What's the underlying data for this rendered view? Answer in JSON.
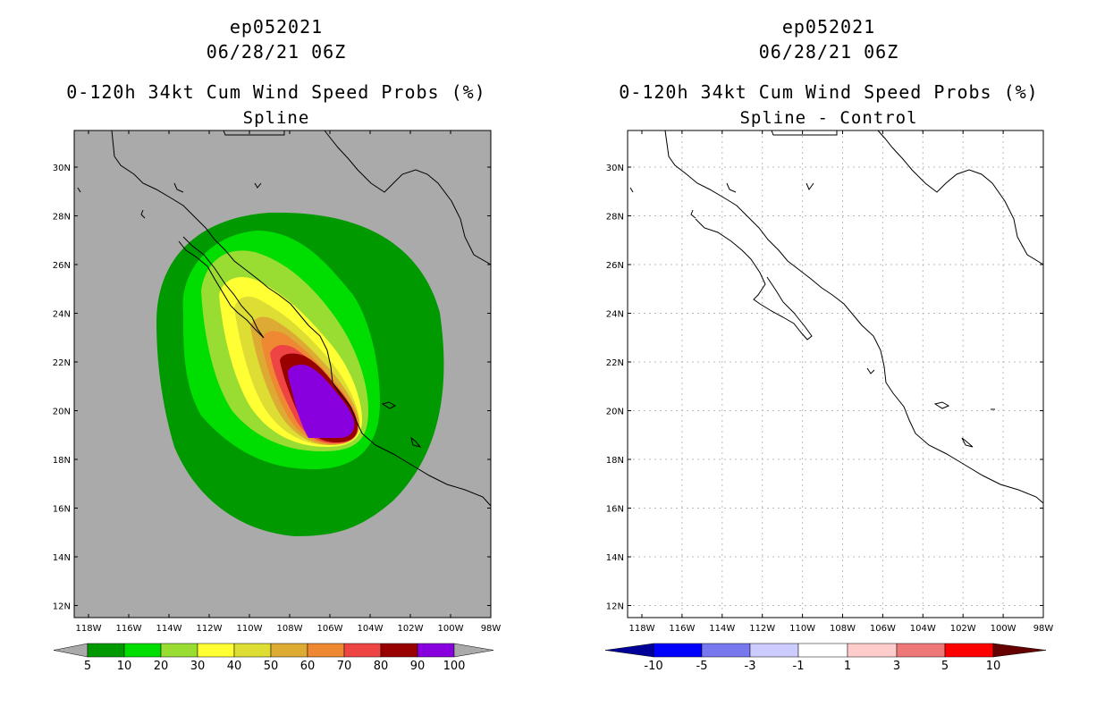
{
  "left_panel": {
    "storm_id": "ep052021",
    "datetime": "06/28/21 06Z",
    "product_title": "0-120h 34kt Cum Wind Speed Probs (%)",
    "subtitle": "Spline",
    "lat_labels": [
      "30N",
      "28N",
      "26N",
      "24N",
      "22N",
      "20N",
      "18N",
      "16N",
      "14N",
      "12N"
    ],
    "lon_labels": [
      "118W",
      "116W",
      "114W",
      "112W",
      "110W",
      "108W",
      "106W",
      "104W",
      "102W",
      "100W",
      "98W"
    ],
    "colorbar": {
      "colors": [
        "#009900",
        "#00dd00",
        "#99dd33",
        "#ffff33",
        "#dddd33",
        "#ddaa33",
        "#ee8833",
        "#ee4444",
        "#990000",
        "#8800dd"
      ],
      "end_color": "#aaaaaa",
      "labels": [
        "5",
        "10",
        "20",
        "30",
        "40",
        "50",
        "60",
        "70",
        "80",
        "90",
        "100"
      ]
    },
    "background_color": "#aaaaaa"
  },
  "right_panel": {
    "storm_id": "ep052021",
    "datetime": "06/28/21 06Z",
    "product_title": "0-120h 34kt Cum Wind Speed Probs (%)",
    "subtitle": "Spline - Control",
    "lat_labels": [
      "30N",
      "28N",
      "26N",
      "24N",
      "22N",
      "20N",
      "18N",
      "16N",
      "14N",
      "12N"
    ],
    "lon_labels": [
      "118W",
      "116W",
      "114W",
      "112W",
      "110W",
      "108W",
      "106W",
      "104W",
      "102W",
      "100W",
      "98W"
    ],
    "colorbar": {
      "colors": [
        "#0000cc",
        "#0000ff",
        "#7777ee",
        "#ccccff",
        "#ffffff",
        "#ffcccc",
        "#ee7777",
        "#ff0000",
        "#990000"
      ],
      "end_colors": [
        "#000099",
        "#660000"
      ],
      "labels": [
        "-10",
        "-5",
        "-3",
        "-1",
        "1",
        "3",
        "5",
        "10"
      ]
    },
    "background_color": "#ffffff"
  }
}
